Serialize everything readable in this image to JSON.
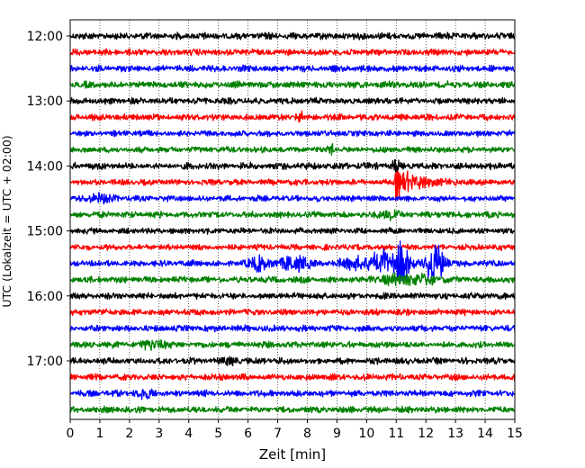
{
  "chart_data": {
    "type": "line",
    "title": "",
    "xlabel": "Zeit  [min]",
    "ylabel": "UTC (Lokalzeit = UTC + 02:00)",
    "xlim": [
      0,
      15
    ],
    "xticks": [
      0,
      1,
      2,
      3,
      4,
      5,
      6,
      7,
      8,
      9,
      10,
      11,
      12,
      13,
      14,
      15
    ],
    "xtick_labels": [
      "0",
      "1",
      "2",
      "3",
      "4",
      "5",
      "6",
      "7",
      "8",
      "9",
      "10",
      "11",
      "12",
      "13",
      "14",
      "15"
    ],
    "ytick_labels": [
      "12:00",
      "13:00",
      "14:00",
      "15:00",
      "16:00",
      "17:00"
    ],
    "ytick_rows": [
      0,
      4,
      8,
      12,
      16,
      20
    ],
    "grid": "vertical dotted",
    "row_interval_min": 15,
    "row_count": 24,
    "colors": [
      "#000000",
      "#ff0000",
      "#0000ff",
      "#008000"
    ],
    "series": [
      {
        "start": "12:00",
        "color": "#000000",
        "amplitude": 0.3,
        "events": []
      },
      {
        "start": "12:15",
        "color": "#ff0000",
        "amplitude": 0.28,
        "events": []
      },
      {
        "start": "12:30",
        "color": "#0000ff",
        "amplitude": 0.28,
        "events": []
      },
      {
        "start": "12:45",
        "color": "#008000",
        "amplitude": 0.3,
        "events": []
      },
      {
        "start": "13:00",
        "color": "#000000",
        "amplitude": 0.28,
        "events": []
      },
      {
        "start": "13:15",
        "color": "#ff0000",
        "amplitude": 0.28,
        "events": [
          {
            "t": 7.8,
            "amp": 0.5,
            "dur": 0.2
          }
        ]
      },
      {
        "start": "13:30",
        "color": "#0000ff",
        "amplitude": 0.26,
        "events": []
      },
      {
        "start": "13:45",
        "color": "#008000",
        "amplitude": 0.26,
        "events": [
          {
            "t": 8.8,
            "amp": 0.5,
            "dur": 0.15
          }
        ]
      },
      {
        "start": "14:00",
        "color": "#000000",
        "amplitude": 0.3,
        "events": [
          {
            "t": 11.0,
            "amp": 0.6,
            "dur": 0.15
          }
        ]
      },
      {
        "start": "14:15",
        "color": "#ff0000",
        "amplitude": 0.26,
        "events": [
          {
            "t": 11.0,
            "amp": 1.6,
            "dur": 0.6,
            "decay": true
          }
        ]
      },
      {
        "start": "14:30",
        "color": "#0000ff",
        "amplitude": 0.26,
        "events": [
          {
            "t": 1.0,
            "amp": 0.35,
            "dur": 0.6
          }
        ]
      },
      {
        "start": "14:45",
        "color": "#008000",
        "amplitude": 0.28,
        "events": [
          {
            "t": 10.8,
            "amp": 0.4,
            "dur": 0.4
          }
        ]
      },
      {
        "start": "15:00",
        "color": "#000000",
        "amplitude": 0.26,
        "events": []
      },
      {
        "start": "15:15",
        "color": "#ff0000",
        "amplitude": 0.26,
        "events": []
      },
      {
        "start": "15:30",
        "color": "#0000ff",
        "amplitude": 0.28,
        "events": [
          {
            "t": 6.4,
            "amp": 0.6,
            "dur": 0.5
          },
          {
            "t": 7.6,
            "amp": 0.7,
            "dur": 0.6
          },
          {
            "t": 9.6,
            "amp": 0.6,
            "dur": 0.6
          },
          {
            "t": 10.5,
            "amp": 1.2,
            "dur": 0.5
          },
          {
            "t": 11.2,
            "amp": 1.9,
            "dur": 0.4
          },
          {
            "t": 12.3,
            "amp": 1.8,
            "dur": 0.45
          }
        ]
      },
      {
        "start": "15:45",
        "color": "#008000",
        "amplitude": 0.28,
        "events": [
          {
            "t": 11.5,
            "amp": 0.5,
            "dur": 1.3
          }
        ]
      },
      {
        "start": "16:00",
        "color": "#000000",
        "amplitude": 0.28,
        "events": []
      },
      {
        "start": "16:15",
        "color": "#ff0000",
        "amplitude": 0.28,
        "events": []
      },
      {
        "start": "16:30",
        "color": "#0000ff",
        "amplitude": 0.28,
        "events": []
      },
      {
        "start": "16:45",
        "color": "#008000",
        "amplitude": 0.28,
        "events": [
          {
            "t": 2.8,
            "amp": 0.4,
            "dur": 0.5
          }
        ]
      },
      {
        "start": "17:00",
        "color": "#000000",
        "amplitude": 0.28,
        "events": [
          {
            "t": 5.4,
            "amp": 0.35,
            "dur": 0.4
          }
        ]
      },
      {
        "start": "17:15",
        "color": "#ff0000",
        "amplitude": 0.28,
        "events": []
      },
      {
        "start": "17:30",
        "color": "#0000ff",
        "amplitude": 0.28,
        "events": [
          {
            "t": 2.5,
            "amp": 0.35,
            "dur": 0.4
          }
        ]
      },
      {
        "start": "17:45",
        "color": "#008000",
        "amplitude": 0.28,
        "events": []
      }
    ]
  }
}
